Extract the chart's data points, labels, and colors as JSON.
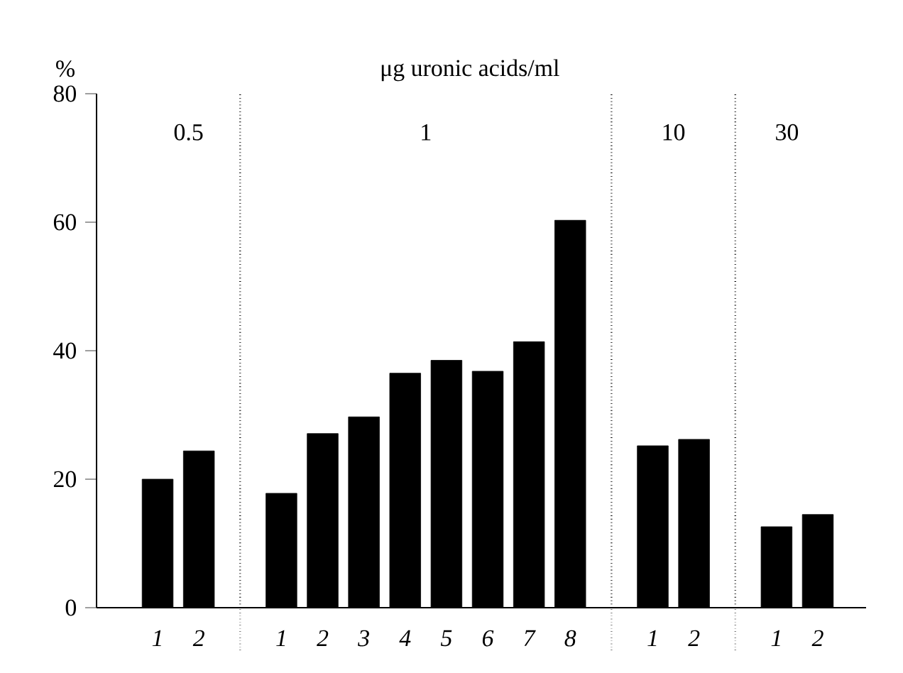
{
  "chart_data": {
    "type": "bar",
    "title": "μg uronic acids/ml",
    "ylabel": "%",
    "categories": [
      "1",
      "2",
      null,
      "1",
      "2",
      "3",
      "4",
      "5",
      "6",
      "7",
      "8",
      null,
      "1",
      "2",
      null,
      "1",
      "2"
    ],
    "values": [
      20.0,
      24.4,
      null,
      17.8,
      27.1,
      29.7,
      36.5,
      38.5,
      36.8,
      41.4,
      60.3,
      null,
      25.2,
      26.2,
      null,
      12.6,
      14.5
    ],
    "color": "#000000",
    "ylim": [
      0,
      80
    ],
    "yticks": [
      0,
      20,
      40,
      60,
      80
    ],
    "annotations": [
      "0.5",
      "1",
      "10",
      "30"
    ],
    "grid": "x"
  }
}
